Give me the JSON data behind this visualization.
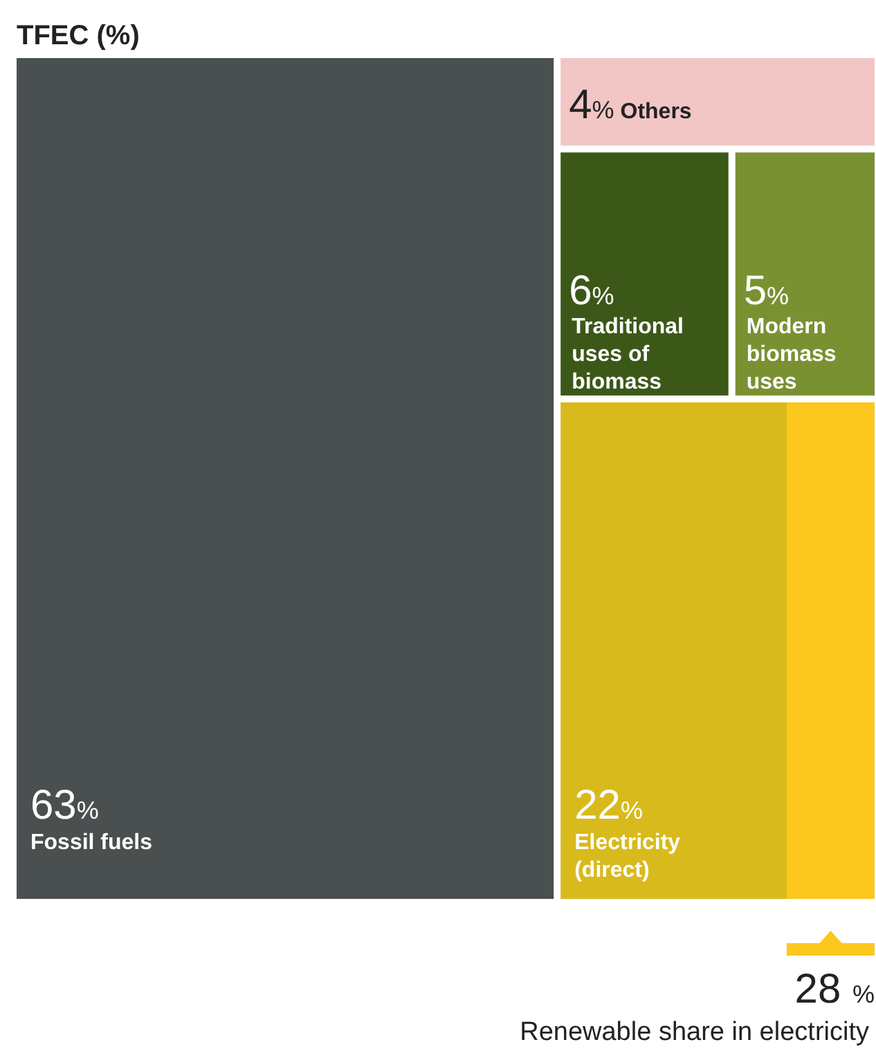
{
  "chart_data": {
    "type": "other",
    "title": "TFEC (%)",
    "categories": [
      "Fossil fuels",
      "Others",
      "Traditional uses of biomass",
      "Modern biomass uses",
      "Electricity (direct)"
    ],
    "series": [
      {
        "values": [
          63,
          4,
          6,
          5,
          22
        ],
        "colors": [
          "#4a4f50",
          "#f1c6c5",
          "#3c5818",
          "#7a9131",
          "#d8ba1c"
        ],
        "value_labels": [
          "63%",
          "4%",
          "6%",
          "5%",
          "22%"
        ]
      },
      {
        "color": "#fcc81e",
        "values": [
          null,
          null,
          null,
          null,
          28
        ],
        "value_labels": [
          null,
          null,
          null,
          null,
          "28 %"
        ]
      }
    ],
    "annotations": [
      "Renewable share in electricity"
    ]
  }
}
